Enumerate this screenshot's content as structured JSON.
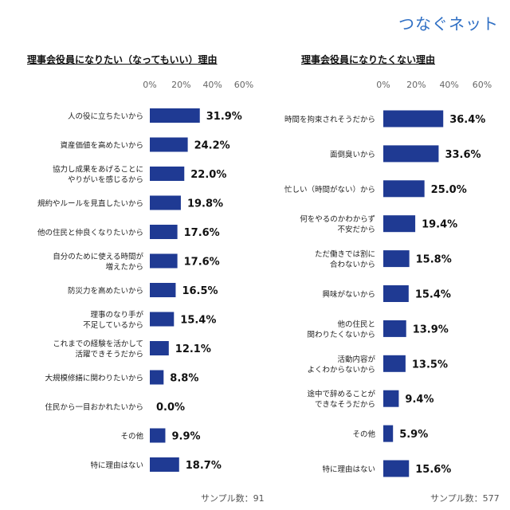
{
  "brand": "つなぐネット",
  "chart_data": [
    {
      "type": "bar",
      "title": "理事会役員になりたい（なってもいい）理由",
      "categories": [
        "人の役に立ちたいから",
        "資産価値を高めたいから",
        "協力し成果をあげることに\nやりがいを感じるから",
        "規約やルールを見直したいから",
        "他の住民と仲良くなりたいから",
        "自分のために使える時間が\n増えたから",
        "防災力を高めたいから",
        "理事のなり手が\n不足しているから",
        "これまでの経験を活かして\n活躍できそうだから",
        "大規模修繕に関わりたいから",
        "住民から一目おかれたいから",
        "その他",
        "特に理由はない"
      ],
      "values": [
        31.9,
        24.2,
        22.0,
        19.8,
        17.6,
        17.6,
        16.5,
        15.4,
        12.1,
        8.8,
        0.0,
        9.9,
        18.7
      ],
      "value_labels": [
        "31.9%",
        "24.2%",
        "22.0%",
        "19.8%",
        "17.6%",
        "17.6%",
        "16.5%",
        "15.4%",
        "12.1%",
        "8.8%",
        "0.0%",
        "9.9%",
        "18.7%"
      ],
      "xlim": [
        0,
        60
      ],
      "ticks": [
        "0%",
        "20%",
        "40%",
        "60%"
      ],
      "sample": "サンプル数：91",
      "bar_color": "#1f3a93"
    },
    {
      "type": "bar",
      "title": "理事会役員になりたくない理由",
      "categories": [
        "時間を拘束されそうだから",
        "面倒臭いから",
        "忙しい（時間がない）から",
        "何をやるのかわからず\n不安だから",
        "ただ働きでは割に\n合わないから",
        "興味がないから",
        "他の住民と\n関わりたくないから",
        "活動内容が\nよくわからないから",
        "途中で辞めることが\nできなそうだから",
        "その他",
        "特に理由はない"
      ],
      "values": [
        36.4,
        33.6,
        25.0,
        19.4,
        15.8,
        15.4,
        13.9,
        13.5,
        9.4,
        5.9,
        15.6
      ],
      "value_labels": [
        "36.4%",
        "33.6%",
        "25.0%",
        "19.4%",
        "15.8%",
        "15.4%",
        "13.9%",
        "13.5%",
        "9.4%",
        "5.9%",
        "15.6%"
      ],
      "xlim": [
        0,
        60
      ],
      "ticks": [
        "0%",
        "20%",
        "40%",
        "60%"
      ],
      "sample": "サンプル数：577",
      "bar_color": "#1f3a93"
    }
  ]
}
